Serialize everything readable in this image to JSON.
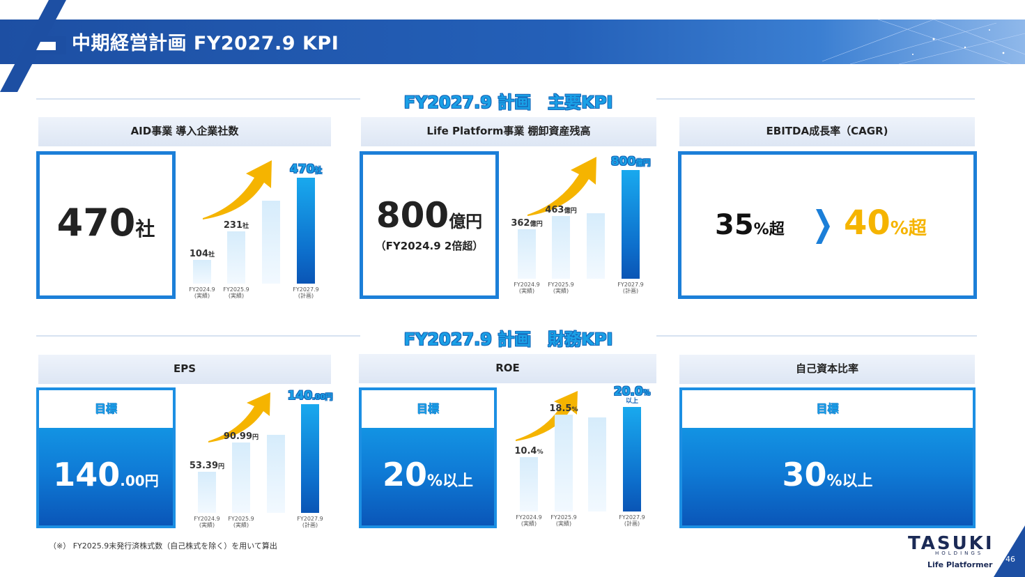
{
  "header": {
    "title": "中期経営計画 FY2027.9 KPI"
  },
  "sections": {
    "main_kpi": "FY2027.9 計画　主要KPI",
    "financial_kpi": "FY2027.9 計画　財務KPI"
  },
  "aid": {
    "header": "AID事業 導入企業社数",
    "big_value": "470",
    "big_unit": "社",
    "chart_data": {
      "type": "bar",
      "categories": [
        "FY2024.9\n(実績)",
        "FY2025.9\n(実績)",
        "",
        "FY2027.9\n(計画)"
      ],
      "values": [
        104,
        231,
        null,
        470
      ],
      "labels": [
        "104社",
        "231社",
        "",
        "470社"
      ]
    },
    "l0v": "104",
    "l0u": "社",
    "l1v": "231",
    "l1u": "社",
    "l3v": "470",
    "l3u": "社",
    "x0a": "FY2024.9",
    "x0b": "(実績)",
    "x1a": "FY2025.9",
    "x1b": "(実績)",
    "x3a": "FY2027.9",
    "x3b": "(計画)"
  },
  "lp": {
    "header": "Life Platform事業 棚卸資産残高",
    "big_value": "800",
    "big_unit": "億円",
    "sub": "（FY2024.9 2倍超）",
    "chart_data": {
      "type": "bar",
      "categories": [
        "FY2024.9\n(実績)",
        "FY2025.9\n(実績)",
        "",
        "FY2027.9\n(計画)"
      ],
      "values": [
        362,
        463,
        null,
        800
      ],
      "labels": [
        "362億円",
        "463億円",
        "",
        "800億円"
      ]
    },
    "l0v": "362",
    "l0u": "億円",
    "l1v": "463",
    "l1u": "億円",
    "l3v": "800",
    "l3u": "億円",
    "x0a": "FY2024.9",
    "x0b": "(実績)",
    "x1a": "FY2025.9",
    "x1b": "(実績)",
    "x3a": "FY2027.9",
    "x3b": "(計画)"
  },
  "ebitda": {
    "header": "EBITDA成長率（CAGR)",
    "from_value": "35",
    "from_unit": "%超",
    "to_value": "40",
    "to_unit": "%超"
  },
  "eps": {
    "header": "EPS",
    "target": "目標",
    "big_value": "140",
    "big_unit": ".00円",
    "chart_data": {
      "type": "bar",
      "categories": [
        "FY2024.9\n(実績)",
        "FY2025.9\n(実績)",
        "",
        "FY2027.9\n(計画)"
      ],
      "values": [
        53.39,
        90.99,
        null,
        140.0
      ],
      "labels": [
        "53.39円",
        "90.99円",
        "",
        "140.00円"
      ]
    },
    "l0v": "53.39",
    "l0u": "円",
    "l1v": "90.99",
    "l1u": "円",
    "l3v": "140",
    "l3u": ".00円",
    "x0a": "FY2024.9",
    "x0b": "(実績)",
    "x1a": "FY2025.9",
    "x1b": "(実績)",
    "x3a": "FY2027.9",
    "x3b": "(計画)"
  },
  "roe": {
    "header": "ROE",
    "target": "目標",
    "big_value": "20",
    "big_unit": "%以上",
    "chart_data": {
      "type": "bar",
      "categories": [
        "FY2024.9\n(実績)",
        "FY2025.9\n(実績)",
        "",
        "FY2027.9\n(計画)"
      ],
      "values": [
        10.4,
        18.5,
        null,
        20.0
      ],
      "labels": [
        "10.4%",
        "18.5%",
        "",
        "20.0%以上"
      ]
    },
    "l0v": "10.4",
    "l0u": "%",
    "l1v": "18.5",
    "l1u": "%",
    "l3v": "20.0",
    "l3u": "%",
    "l3w": "以上",
    "x0a": "FY2024.9",
    "x0b": "(実績)",
    "x1a": "FY2025.9",
    "x1b": "(実績)",
    "x3a": "FY2027.9",
    "x3b": "(計画)"
  },
  "equity": {
    "header": "自己資本比率",
    "target": "目標",
    "big_value": "30",
    "big_unit": "%以上"
  },
  "footnote": "（※） FY2025.9末発行済株式数（自己株式を除く）を用いて算出",
  "brand": {
    "name": "TASUKI",
    "sub": "HOLDINGS",
    "tagline": "Life Platformer",
    "page": "46"
  },
  "colors": {
    "primary_blue": "#1c7fd8",
    "accent_yellow": "#f5b400",
    "banner_blue": "#1d4fa3"
  }
}
